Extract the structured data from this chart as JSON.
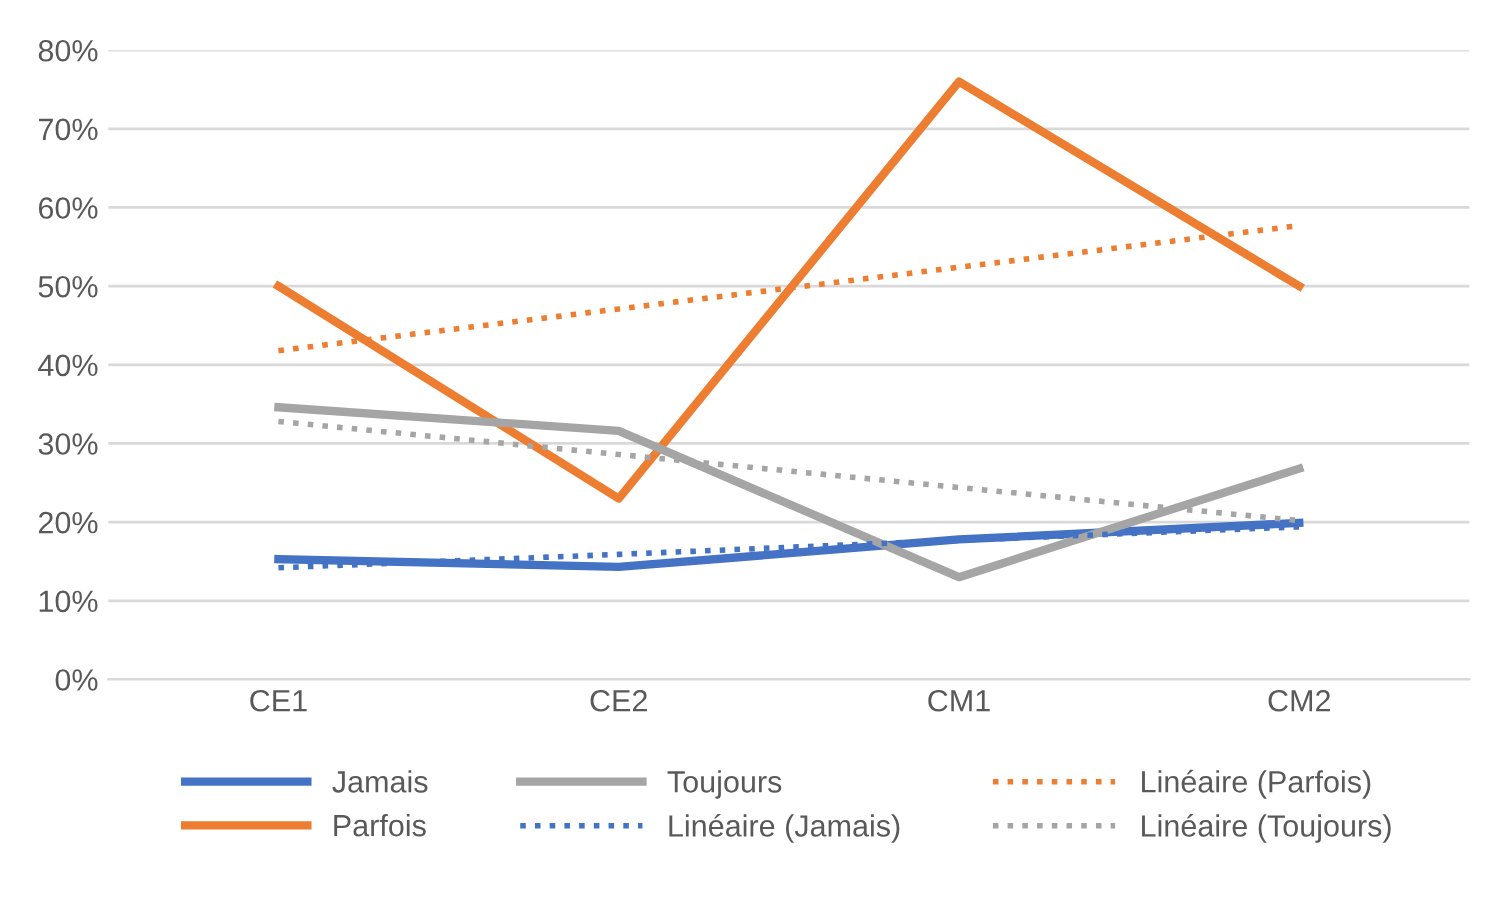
{
  "chart_data": {
    "type": "line",
    "categories": [
      "CE1",
      "CE2",
      "CM1",
      "CM2"
    ],
    "series": [
      {
        "name": "Jamais",
        "color": "#4472c4",
        "values": [
          15.3,
          14.3,
          17.8,
          19.9
        ],
        "line_style": "solid"
      },
      {
        "name": "Parfois",
        "color": "#ed7d31",
        "values": [
          50,
          23,
          76,
          50
        ],
        "line_style": "solid"
      },
      {
        "name": "Toujours",
        "color": "#a5a5a5",
        "values": [
          34.6,
          31.6,
          13,
          26.8
        ],
        "line_style": "solid"
      },
      {
        "name": "Linéaire (Jamais)",
        "color": "#4472c4",
        "values": [
          14.2,
          15.9,
          17.7,
          19.4
        ],
        "line_style": "dotted"
      },
      {
        "name": "Linéaire (Parfois)",
        "color": "#ed7d31",
        "values": [
          41.8,
          47.1,
          52.4,
          57.7
        ],
        "line_style": "dotted"
      },
      {
        "name": "Linéaire (Toujours)",
        "color": "#a5a5a5",
        "values": [
          32.8,
          28.6,
          24.4,
          20.2
        ],
        "line_style": "dotted"
      }
    ],
    "ylim": [
      0,
      80
    ],
    "yticks": [
      {
        "value": 0,
        "label": "0%"
      },
      {
        "value": 10,
        "label": "10%"
      },
      {
        "value": 20,
        "label": "20%"
      },
      {
        "value": 30,
        "label": "30%"
      },
      {
        "value": 40,
        "label": "40%"
      },
      {
        "value": 50,
        "label": "50%"
      },
      {
        "value": 60,
        "label": "60%"
      },
      {
        "value": 70,
        "label": "70%"
      },
      {
        "value": 80,
        "label": "80%"
      }
    ],
    "grid": "y",
    "legend": "bottom",
    "marker": "none"
  }
}
